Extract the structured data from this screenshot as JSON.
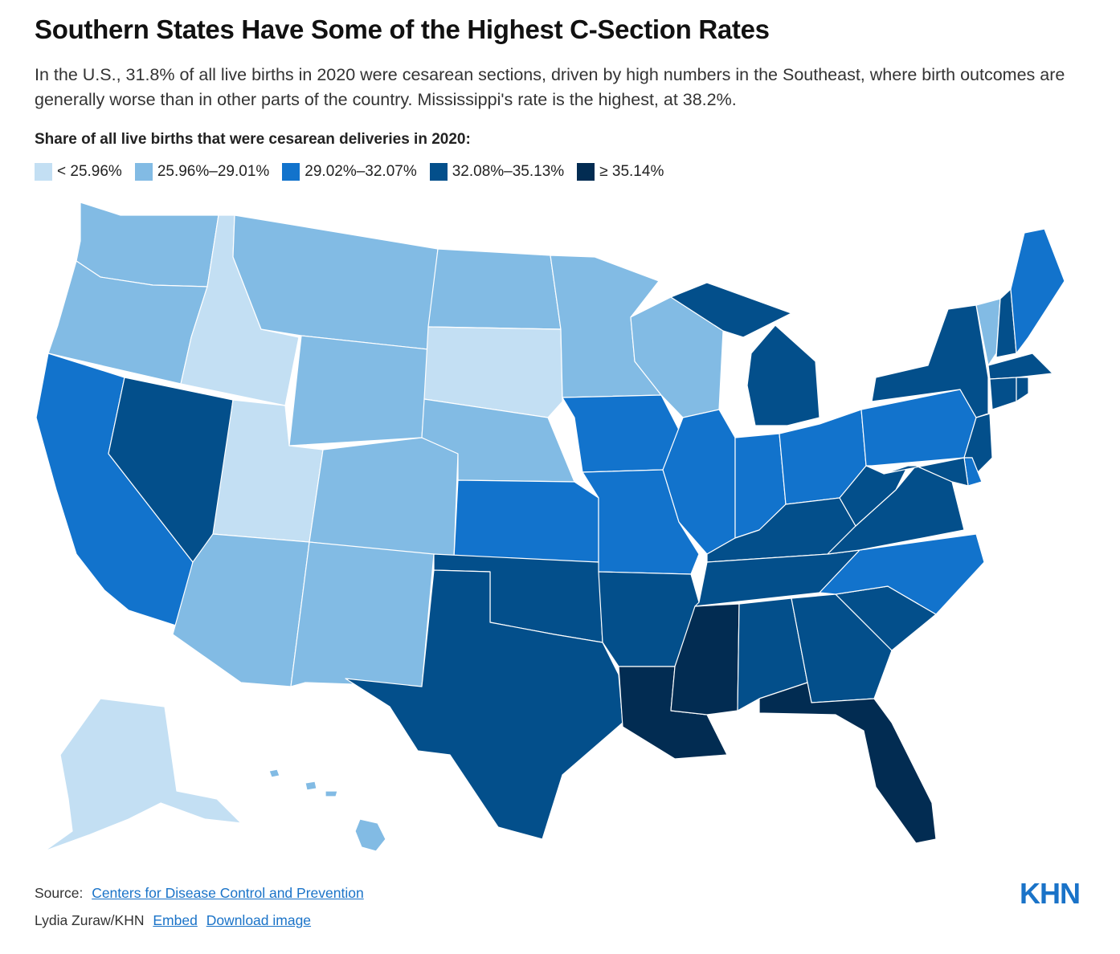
{
  "title": "Southern States Have Some of the Highest C-Section Rates",
  "subtitle": "In the U.S., 31.8% of all live births in 2020 were cesarean sections, driven by high numbers in the Southeast, where birth outcomes are generally worse than in other parts of the country. Mississippi's rate is the highest, at 38.2%.",
  "legend": {
    "title": "Share of all live births that were cesarean deliveries in 2020:",
    "bins": [
      {
        "label": "< 25.96%",
        "color": "#c3dff3"
      },
      {
        "label": "25.96%–29.01%",
        "color": "#82bbe4"
      },
      {
        "label": "29.02%–32.07%",
        "color": "#1273cc"
      },
      {
        "label": "32.08%–35.13%",
        "color": "#034f8b"
      },
      {
        "label": "≥ 35.14%",
        "color": "#022c52"
      }
    ]
  },
  "chart_data": {
    "type": "choropleth",
    "regions": [
      {
        "state": "WA",
        "bin": 1
      },
      {
        "state": "OR",
        "bin": 1
      },
      {
        "state": "CA",
        "bin": 2
      },
      {
        "state": "ID",
        "bin": 0
      },
      {
        "state": "NV",
        "bin": 3
      },
      {
        "state": "UT",
        "bin": 0
      },
      {
        "state": "AZ",
        "bin": 1
      },
      {
        "state": "MT",
        "bin": 1
      },
      {
        "state": "WY",
        "bin": 1
      },
      {
        "state": "CO",
        "bin": 1
      },
      {
        "state": "NM",
        "bin": 1
      },
      {
        "state": "ND",
        "bin": 1
      },
      {
        "state": "SD",
        "bin": 0
      },
      {
        "state": "NE",
        "bin": 1
      },
      {
        "state": "KS",
        "bin": 2
      },
      {
        "state": "OK",
        "bin": 3
      },
      {
        "state": "TX",
        "bin": 3
      },
      {
        "state": "MN",
        "bin": 1
      },
      {
        "state": "IA",
        "bin": 2
      },
      {
        "state": "MO",
        "bin": 2
      },
      {
        "state": "AR",
        "bin": 3
      },
      {
        "state": "LA",
        "bin": 4
      },
      {
        "state": "WI",
        "bin": 1
      },
      {
        "state": "IL",
        "bin": 2
      },
      {
        "state": "MI",
        "bin": 3
      },
      {
        "state": "IN",
        "bin": 2
      },
      {
        "state": "OH",
        "bin": 2
      },
      {
        "state": "KY",
        "bin": 3
      },
      {
        "state": "TN",
        "bin": 3
      },
      {
        "state": "MS",
        "bin": 4
      },
      {
        "state": "AL",
        "bin": 3
      },
      {
        "state": "GA",
        "bin": 3
      },
      {
        "state": "FL",
        "bin": 4
      },
      {
        "state": "SC",
        "bin": 3
      },
      {
        "state": "NC",
        "bin": 2
      },
      {
        "state": "VA",
        "bin": 3
      },
      {
        "state": "WV",
        "bin": 3
      },
      {
        "state": "PA",
        "bin": 2
      },
      {
        "state": "NY",
        "bin": 3
      },
      {
        "state": "VT",
        "bin": 1
      },
      {
        "state": "NH",
        "bin": 3
      },
      {
        "state": "ME",
        "bin": 2
      },
      {
        "state": "MA",
        "bin": 3
      },
      {
        "state": "RI",
        "bin": 3
      },
      {
        "state": "CT",
        "bin": 3
      },
      {
        "state": "NJ",
        "bin": 3
      },
      {
        "state": "DE",
        "bin": 2
      },
      {
        "state": "MD",
        "bin": 3
      },
      {
        "state": "AK",
        "bin": 0
      },
      {
        "state": "HI",
        "bin": 1
      }
    ]
  },
  "footer": {
    "source_prefix": "Source:",
    "source_link": "Centers for Disease Control and Prevention",
    "credit": "Lydia Zuraw/KHN",
    "embed_link": "Embed",
    "download_link": "Download image",
    "logo": "KHN"
  }
}
